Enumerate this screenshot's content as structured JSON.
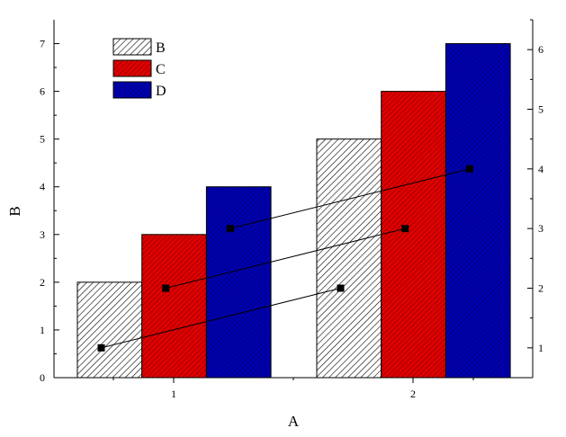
{
  "chart_data": {
    "type": "bar",
    "categories": [
      "1",
      "2"
    ],
    "xlabel": "A",
    "ylabel": "B",
    "ylim": [
      0,
      7.5
    ],
    "y_ticks": [
      0,
      1,
      2,
      3,
      4,
      5,
      6,
      7
    ],
    "y2lim": [
      0.5,
      6.5
    ],
    "y2_ticks": [
      1,
      2,
      3,
      4,
      5,
      6
    ],
    "series": [
      {
        "name": "B",
        "values": [
          2,
          5
        ],
        "color": "#ffffff",
        "pattern": "diagonal-hatch-black"
      },
      {
        "name": "C",
        "values": [
          3,
          6
        ],
        "color": "#e00000",
        "pattern": "diagonal-hatch-dark"
      },
      {
        "name": "D",
        "values": [
          4,
          7
        ],
        "color": "#0000b0",
        "pattern": "diagonal-hatch-dark"
      }
    ],
    "line_series": [
      {
        "axis": "right",
        "marker": "square",
        "points": [
          {
            "series": "B",
            "category": "1",
            "y": 1
          },
          {
            "series": "B",
            "category": "2",
            "y": 2
          }
        ]
      },
      {
        "axis": "right",
        "marker": "square",
        "points": [
          {
            "series": "C",
            "category": "1",
            "y": 2
          },
          {
            "series": "C",
            "category": "2",
            "y": 3
          }
        ]
      },
      {
        "axis": "right",
        "marker": "square",
        "points": [
          {
            "series": "D",
            "category": "1",
            "y": 3
          },
          {
            "series": "D",
            "category": "2",
            "y": 4
          }
        ]
      }
    ],
    "legend": {
      "position": "top-left",
      "entries": [
        "B",
        "C",
        "D"
      ]
    },
    "grid": false
  }
}
